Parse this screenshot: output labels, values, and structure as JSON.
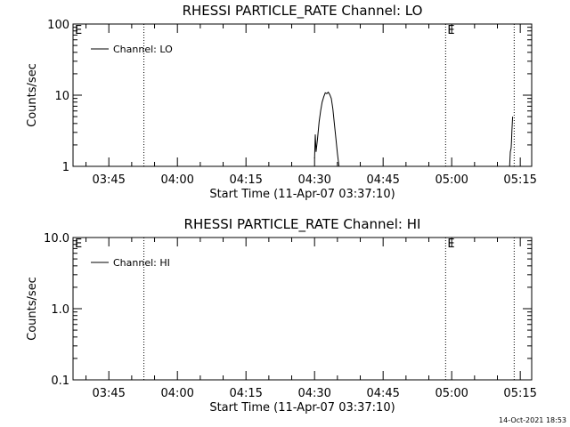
{
  "footer": {
    "timestamp": "14-Oct-2021 18:53"
  },
  "chart_data": [
    {
      "type": "line",
      "title": "RHESSI PARTICLE_RATE Channel: LO",
      "xlabel": "Start Time (11-Apr-07 03:37:10)",
      "ylabel": "Counts/sec",
      "y_scale": "log",
      "ylim": [
        1,
        100
      ],
      "y_ticks": [
        "1",
        "10",
        "100"
      ],
      "xlim": [
        "03:37:10",
        "05:17:30"
      ],
      "x_ticks": [
        "03:45",
        "04:00",
        "04:15",
        "04:30",
        "04:45",
        "05:00",
        "05:15"
      ],
      "legend": {
        "position": "top-left",
        "entries": [
          "Channel: LO"
        ]
      },
      "markers": [
        {
          "time": "03:52:40",
          "label": ""
        },
        {
          "time": "04:58:40",
          "label": "E"
        },
        {
          "time": "05:13:40",
          "label": ""
        }
      ],
      "corner_label": "E",
      "series": [
        {
          "name": "Channel: LO",
          "segments": [
            [
              [
                "04:30:00",
                1.3
              ],
              [
                "04:30:10",
                2.8
              ],
              [
                "04:30:20",
                1.6
              ],
              [
                "04:30:40",
                2.5
              ],
              [
                "04:31:00",
                4.2
              ],
              [
                "04:31:20",
                6.0
              ],
              [
                "04:31:40",
                8.0
              ],
              [
                "04:32:00",
                9.5
              ],
              [
                "04:32:20",
                10.8
              ],
              [
                "04:32:40",
                10.5
              ],
              [
                "04:33:00",
                11.0
              ],
              [
                "04:33:20",
                10.2
              ],
              [
                "04:33:40",
                9.0
              ],
              [
                "04:34:00",
                6.5
              ],
              [
                "04:34:20",
                4.0
              ],
              [
                "04:34:40",
                2.5
              ],
              [
                "04:35:00",
                1.5
              ],
              [
                "04:35:20",
                1.0
              ]
            ],
            [
              [
                "05:12:40",
                1.0
              ],
              [
                "05:12:50",
                1.6
              ],
              [
                "05:13:00",
                1.8
              ],
              [
                "05:13:05",
                2.2
              ],
              [
                "05:13:10",
                3.2
              ],
              [
                "05:13:20",
                5.0
              ]
            ]
          ]
        }
      ]
    },
    {
      "type": "line",
      "title": "RHESSI PARTICLE_RATE Channel: HI",
      "xlabel": "Start Time (11-Apr-07 03:37:10)",
      "ylabel": "Counts/sec",
      "y_scale": "log",
      "ylim": [
        0.1,
        10
      ],
      "y_ticks": [
        "0.1",
        "1.0",
        "10.0"
      ],
      "xlim": [
        "03:37:10",
        "05:17:30"
      ],
      "x_ticks": [
        "03:45",
        "04:00",
        "04:15",
        "04:30",
        "04:45",
        "05:00",
        "05:15"
      ],
      "legend": {
        "position": "top-left",
        "entries": [
          "Channel: HI"
        ]
      },
      "markers": [
        {
          "time": "03:52:40",
          "label": ""
        },
        {
          "time": "04:58:40",
          "label": "E"
        },
        {
          "time": "05:13:40",
          "label": ""
        }
      ],
      "corner_label": "E",
      "series": [
        {
          "name": "Channel: HI",
          "segments": []
        }
      ]
    }
  ]
}
